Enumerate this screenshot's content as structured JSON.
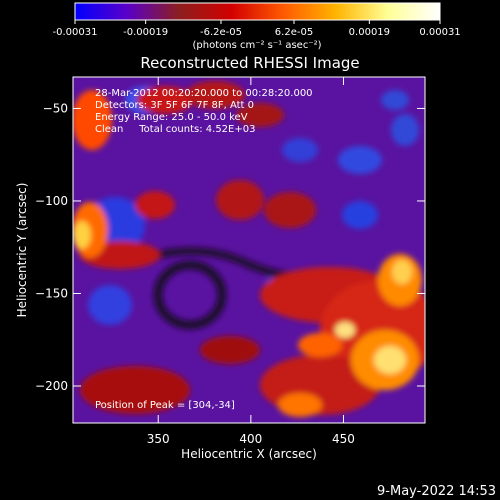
{
  "chart_data": {
    "type": "heatmap",
    "title": "Reconstructed RHESSI Image",
    "xlabel": "Heliocentric X (arcsec)",
    "ylabel": "Heliocentric Y (arcsec)",
    "xlim": [
      304,
      494
    ],
    "ylim": [
      -220,
      -33
    ],
    "x_ticks": [
      350,
      400,
      450
    ],
    "y_ticks": [
      -50,
      -100,
      -150,
      -200
    ],
    "colorbar": {
      "min": -0.00031,
      "max": 0.00031,
      "ticks": [
        -0.00031,
        -0.00019,
        -6.2e-05,
        6.2e-05,
        0.00019,
        0.00031
      ],
      "tick_labels": [
        "-0.00031",
        "-0.00019",
        "-6.2e-05",
        "6.2e-05",
        "0.00019",
        "0.00031"
      ],
      "label": "(photons cm⁻² s⁻¹ asec⁻²)",
      "colormap": [
        "#0000ff",
        "#5a00c8",
        "#8c1e1e",
        "#d20000",
        "#ff5a00",
        "#ffb400",
        "#ffff96",
        "#ffffff"
      ]
    },
    "annotations": [
      "28-Mar-2012 00:20:20.000 to 00:28:20.000",
      "Detectors: 3F 5F 6F 7F 8F, Att 0",
      "Energy Range: 25.0 - 50.0 keV",
      "Clean     Total counts: 4.52E+03"
    ],
    "peak_label": "Position of Peak = [304,-34]",
    "grid": false
  },
  "footer": {
    "timestamp": "9-May-2022 14:53"
  }
}
